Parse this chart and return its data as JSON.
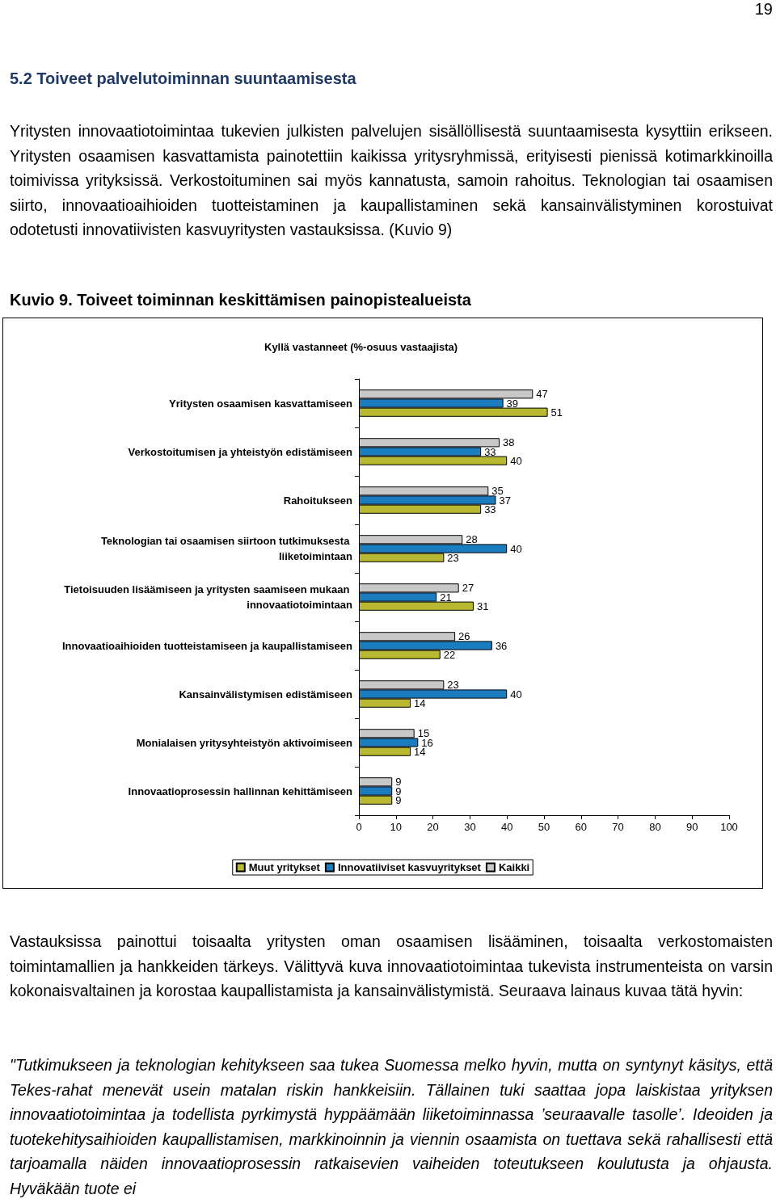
{
  "chart_data": {
    "type": "bar",
    "orientation": "horizontal",
    "title": "Kuvio 9. Toiveet toiminnan keskittämisen painopistealueista",
    "subtitle": "Kyllä vastanneet (%-osuus vastaajista)",
    "annotations": [
      "19",
      "5.2 Toiveet palvelutoiminnan suuntaamisesta",
      "Yritysten innovaatiotoimintaa tukevien julkisten palvelujen sisällöllisestä suuntaamisesta kysyttiin erikseen. Yritysten osaamisen kasvattamista painotettiin kaikissa yritysryhmissä, erityisesti pienissä kotimarkkinoilla toimivissa yrityksissä. Verkostoituminen sai myös kannatusta, samoin rahoitus. Teknologian tai osaamisen siirto, innovaatioaihioiden tuotteistaminen ja kaupallistaminen sekä kansainvälistyminen korostuivat odotetusti innovatiivisten kasvuyritysten vastauksissa. (Kuvio 9)",
      "Vastauksissa painottui toisaalta yritysten oman osaamisen lisääminen, toisaalta verkostomaisten toimintamallien ja hankkeiden tärkeys. Välittyvä kuva innovaatiotoimintaa tukevista instrumenteista on varsin kokonaisvaltainen ja korostaa kaupallistamista ja kansainvälistymistä. Seuraava lainaus kuvaa tätä hyvin:",
      "\"Tutkimukseen ja teknologian kehitykseen saa tukea Suomessa melko hyvin, mutta on syntynyt käsitys, että Tekes-rahat menevät usein matalan riskin hankkeisiin. Tällainen tuki saattaa jopa laiskistaa yrityksen innovaatiotoimintaa ja todellista pyrkimystä hyppäämään liiketoiminnassa ’seuraavalle tasolle’. Ideoiden ja tuotekehitysaihioiden kaupallistamisen, markkinoinnin ja viennin osaamista on tuettava sekä rahallisesti että tarjoamalla näiden innovaatioprosessin ratkaisevien vaiheiden toteutukseen koulutusta ja ohjausta. Hyväkään tuote ei"
    ],
    "categories": [
      "Yritysten osaamisen kasvattamiseen",
      "Verkostoitumisen ja yhteistyön edistämiseen",
      "Rahoitukseen",
      "Teknologian tai osaamisen siirtoon tutkimuksesta liiketoimintaan",
      "Tietoisuuden lisäämiseen ja yritysten saamiseen mukaan innovaatiotoimintaan",
      "Innovaatioaihioiden tuotteistamiseen ja kaupallistamiseen",
      "Kansainvälistymisen edistämiseen",
      "Monialaisen yritysyhteistyön aktivoimiseen",
      "Innovaatioprosessin hallinnan kehittämiseen"
    ],
    "series": [
      {
        "name": "Muut yritykset",
        "color": "#b8b832",
        "values": [
          51,
          40,
          33,
          23,
          31,
          22,
          14,
          14,
          9
        ]
      },
      {
        "name": "Innovatiiviset kasvuyritykset",
        "color": "#1c7cc0",
        "values": [
          39,
          33,
          37,
          40,
          21,
          36,
          40,
          16,
          9
        ]
      },
      {
        "name": "Kaikki",
        "color": "#c8c8c8",
        "values": [
          47,
          38,
          35,
          28,
          27,
          26,
          23,
          15,
          9
        ]
      }
    ],
    "xlim": [
      0,
      100
    ],
    "xticks": [
      0,
      10,
      20,
      30,
      40,
      50,
      60,
      70,
      80,
      90,
      100
    ],
    "data_labels": true,
    "legend": "bottom"
  }
}
